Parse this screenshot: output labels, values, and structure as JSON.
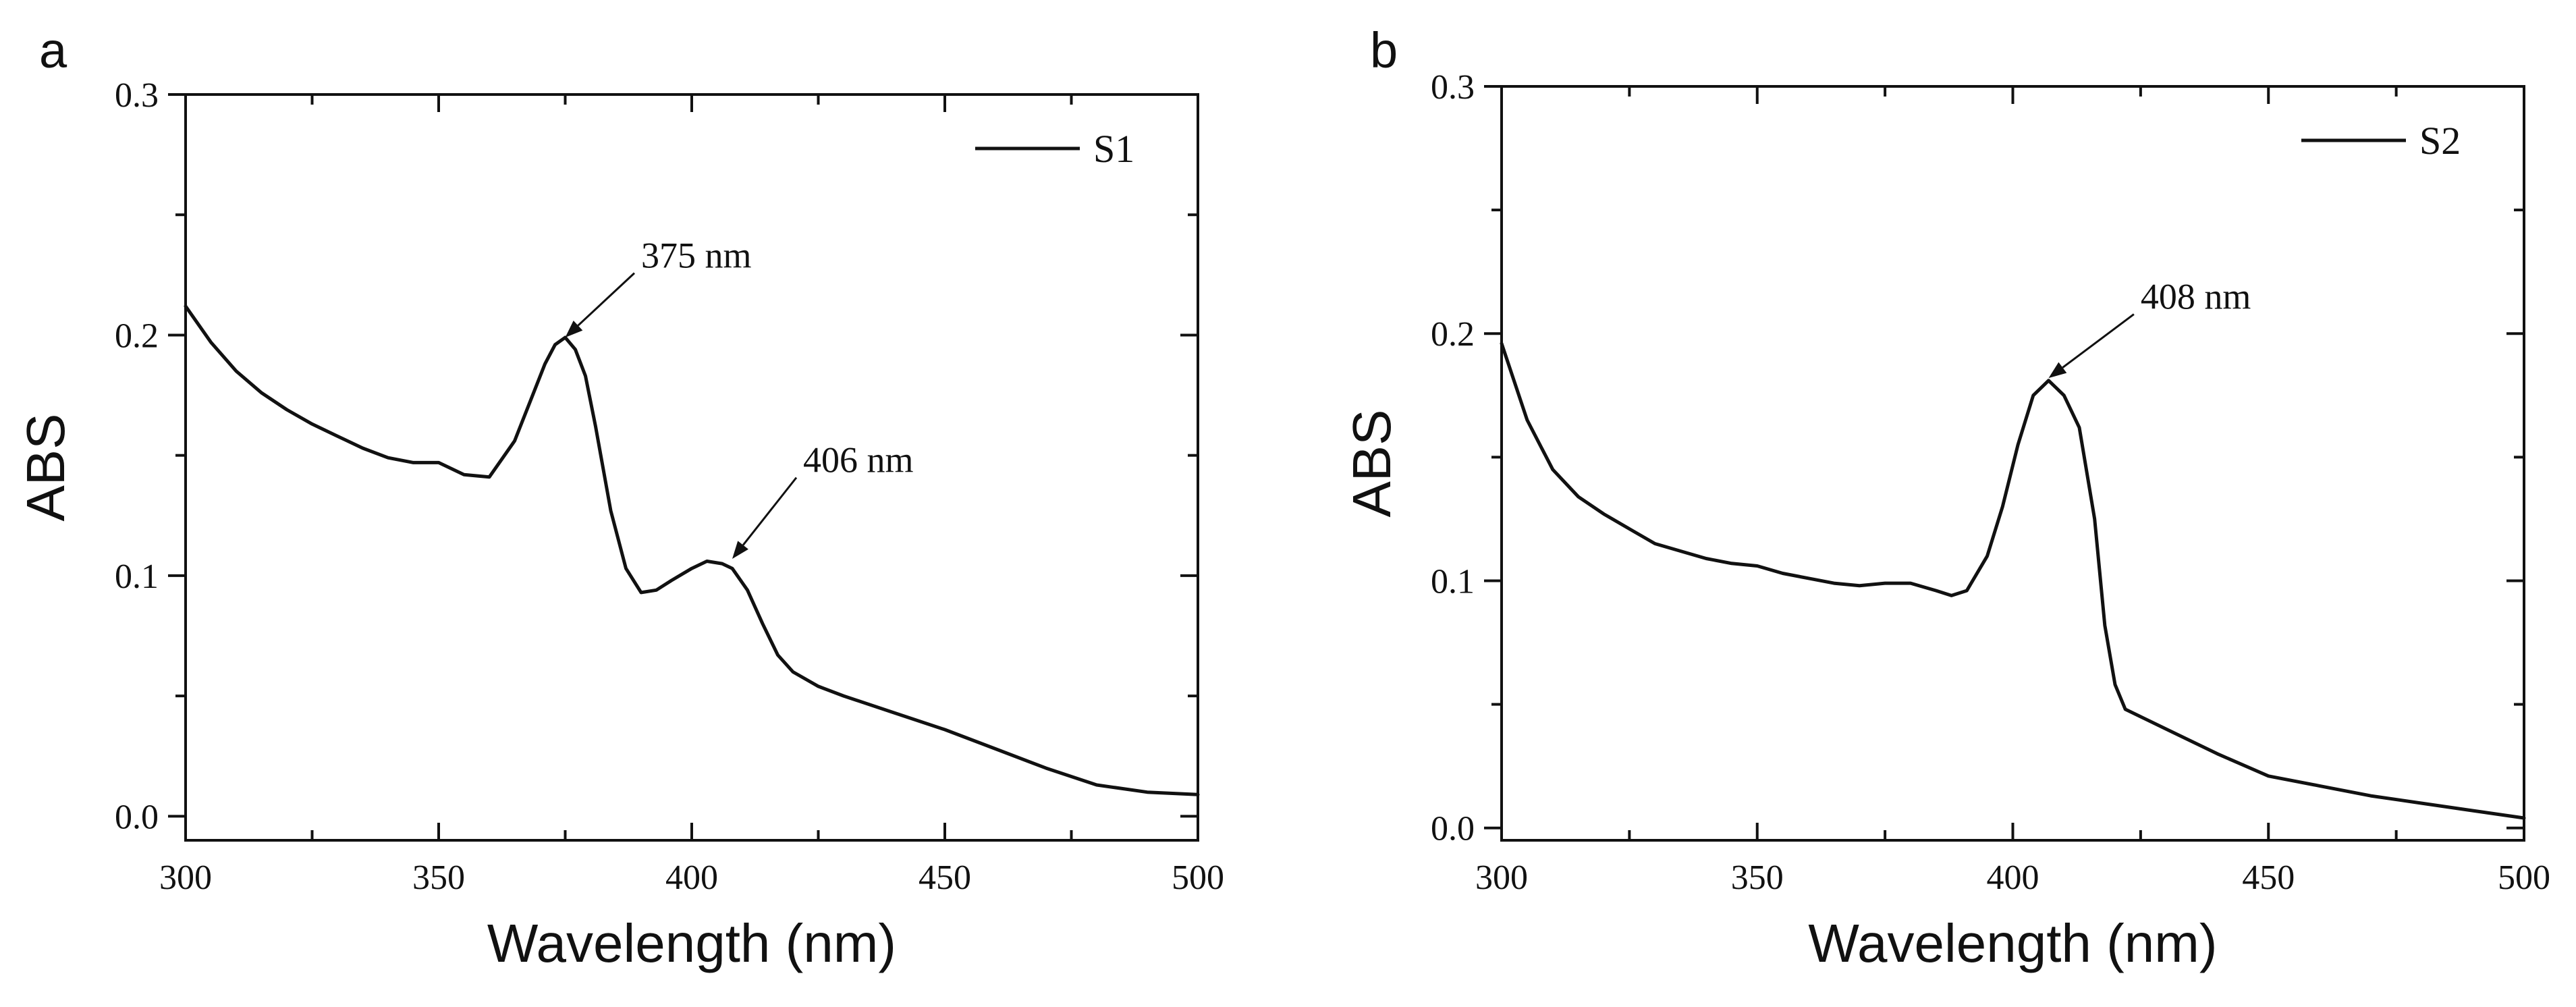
{
  "chart_data": [
    {
      "type": "line",
      "panel_label": "a",
      "title": "",
      "xlabel": "Wavelength (nm)",
      "ylabel": "ABS",
      "xlim": [
        300,
        500
      ],
      "ylim": [
        -0.01,
        0.3
      ],
      "xticks": [
        300,
        350,
        400,
        450,
        500
      ],
      "xtick_labels": [
        "300",
        "350",
        "400",
        "450",
        "500"
      ],
      "yticks": [
        0.0,
        0.1,
        0.2,
        0.3
      ],
      "ytick_labels": [
        "0.0",
        "0.1",
        "0.2",
        "0.3"
      ],
      "grid": false,
      "legend_position": "top-right",
      "series": [
        {
          "name": "S1",
          "x": [
            300,
            305,
            310,
            315,
            320,
            325,
            330,
            335,
            340,
            345,
            350,
            355,
            360,
            365,
            368,
            371,
            373,
            375,
            377,
            379,
            381,
            384,
            387,
            390,
            393,
            396,
            400,
            403,
            406,
            408,
            411,
            414,
            417,
            420,
            425,
            430,
            440,
            450,
            460,
            470,
            480,
            490,
            500
          ],
          "values": [
            0.212,
            0.197,
            0.185,
            0.176,
            0.169,
            0.163,
            0.158,
            0.153,
            0.149,
            0.147,
            0.147,
            0.142,
            0.141,
            0.156,
            0.172,
            0.188,
            0.196,
            0.199,
            0.194,
            0.183,
            0.162,
            0.127,
            0.103,
            0.093,
            0.094,
            0.098,
            0.103,
            0.106,
            0.105,
            0.103,
            0.094,
            0.08,
            0.067,
            0.06,
            0.054,
            0.05,
            0.043,
            0.036,
            0.028,
            0.02,
            0.013,
            0.01,
            0.009
          ]
        }
      ],
      "annotations": [
        {
          "text": "375 nm",
          "x": 375,
          "y": 0.199,
          "text_x": 390,
          "text_y": 0.228
        },
        {
          "text": "406 nm",
          "x": 408,
          "y": 0.107,
          "text_x": 422,
          "text_y": 0.143
        }
      ]
    },
    {
      "type": "line",
      "panel_label": "b",
      "title": "",
      "xlabel": "Wavelength (nm)",
      "ylabel": "ABS",
      "xlim": [
        300,
        500
      ],
      "ylim": [
        -0.005,
        0.3
      ],
      "xticks": [
        300,
        350,
        400,
        450,
        500
      ],
      "xtick_labels": [
        "300",
        "350",
        "400",
        "450",
        "500"
      ],
      "yticks": [
        0.0,
        0.1,
        0.2,
        0.3
      ],
      "ytick_labels": [
        "0.0",
        "0.1",
        "0.2",
        "0.3"
      ],
      "grid": false,
      "legend_position": "top-right",
      "series": [
        {
          "name": "S2",
          "x": [
            300,
            305,
            310,
            315,
            320,
            325,
            330,
            335,
            340,
            345,
            350,
            355,
            360,
            365,
            370,
            375,
            380,
            385,
            388,
            391,
            395,
            398,
            401,
            404,
            407,
            410,
            413,
            416,
            418,
            420,
            422,
            425,
            430,
            440,
            450,
            460,
            470,
            480,
            490,
            500
          ],
          "values": [
            0.196,
            0.165,
            0.145,
            0.134,
            0.127,
            0.121,
            0.115,
            0.112,
            0.109,
            0.107,
            0.106,
            0.103,
            0.101,
            0.099,
            0.098,
            0.099,
            0.099,
            0.096,
            0.094,
            0.096,
            0.11,
            0.13,
            0.155,
            0.175,
            0.181,
            0.175,
            0.162,
            0.125,
            0.082,
            0.058,
            0.048,
            0.045,
            0.04,
            0.03,
            0.021,
            0.017,
            0.013,
            0.01,
            0.007,
            0.004
          ]
        }
      ],
      "annotations": [
        {
          "text": "408 nm",
          "x": 407,
          "y": 0.182,
          "text_x": 425,
          "text_y": 0.21
        }
      ]
    }
  ]
}
